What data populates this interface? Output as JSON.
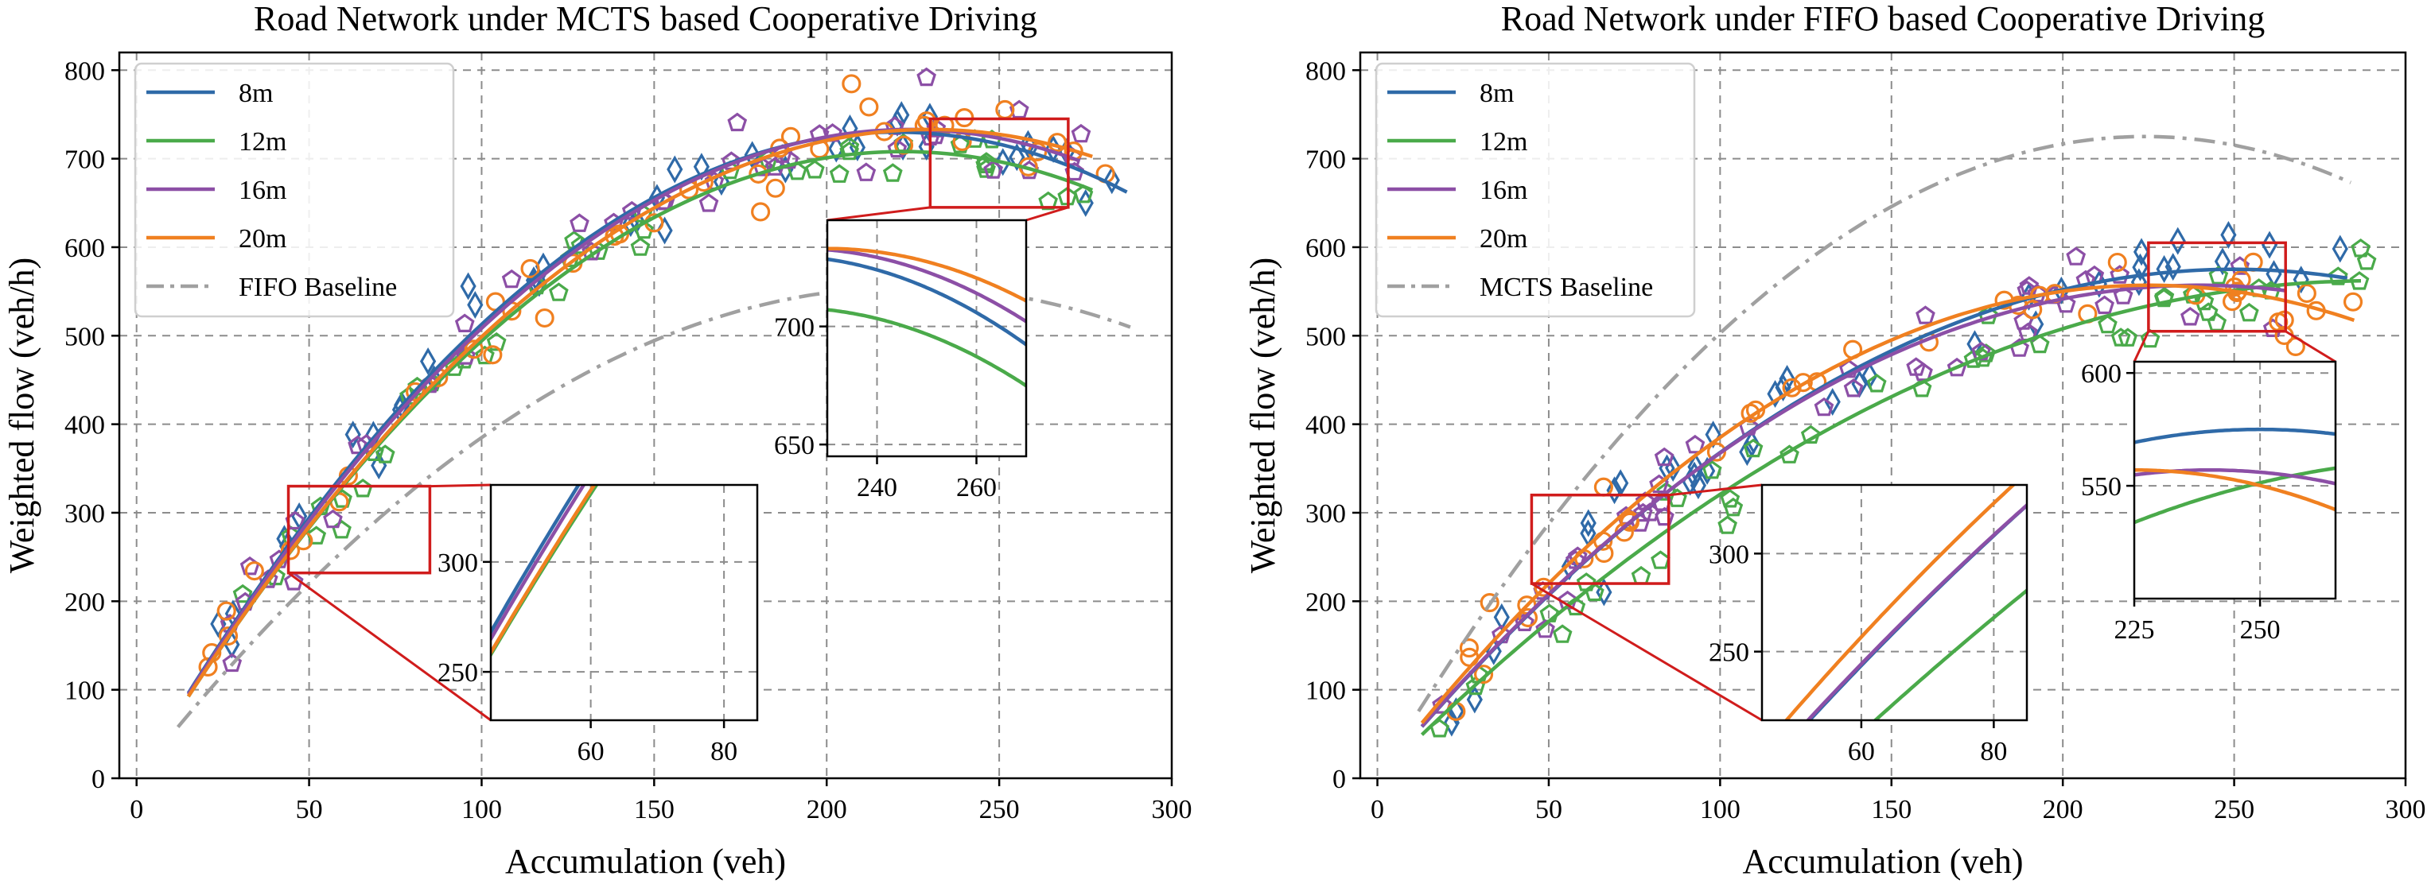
{
  "chart_data": [
    {
      "type": "scatter",
      "title": "Road Network under MCTS based Cooperative Driving",
      "xlabel": "Accumulation (veh)",
      "ylabel": "Weighted flow (veh/h)",
      "xlim": [
        -5,
        300
      ],
      "ylim": [
        0,
        820
      ],
      "xticks": [
        0,
        50,
        100,
        150,
        200,
        250,
        300
      ],
      "yticks": [
        0,
        100,
        200,
        300,
        400,
        500,
        600,
        700,
        800
      ],
      "grid": true,
      "legend_position": "top-left",
      "series": [
        {
          "name": "8m",
          "color": "#2f6aa8",
          "marker": "diamond",
          "fit": {
            "peak_x": 220,
            "peak_y": 730,
            "x_start": 15,
            "x_end": 287
          }
        },
        {
          "name": "12m",
          "color": "#4aaa4a",
          "marker": "pentagon",
          "fit": {
            "peak_x": 222,
            "peak_y": 708,
            "x_start": 15,
            "x_end": 278
          }
        },
        {
          "name": "16m",
          "color": "#8c4fa6",
          "marker": "pentagon",
          "fit": {
            "peak_x": 224,
            "peak_y": 733,
            "x_start": 15,
            "x_end": 273
          }
        },
        {
          "name": "20m",
          "color": "#f08020",
          "marker": "circle",
          "fit": {
            "peak_x": 230,
            "peak_y": 733,
            "x_start": 15,
            "x_end": 278
          }
        }
      ],
      "baseline": {
        "name": "FIFO Baseline",
        "color": "#a0a0a0",
        "peak_x": 224,
        "peak_y": 555,
        "x_start": 12,
        "x_end": 288
      },
      "insets": [
        {
          "box_xlim": [
            44,
            85
          ],
          "box_ylim": [
            232,
            330
          ],
          "xlim": [
            45,
            85
          ],
          "ylim": [
            228,
            335
          ],
          "xticks": [
            60,
            80
          ],
          "yticks": [
            250,
            300
          ]
        },
        {
          "box_xlim": [
            230,
            270
          ],
          "box_ylim": [
            645,
            745
          ],
          "xlim": [
            230,
            270
          ],
          "ylim": [
            645,
            745
          ],
          "xticks": [
            240,
            260
          ],
          "yticks": [
            650,
            700
          ]
        }
      ]
    },
    {
      "type": "scatter",
      "title": "Road Network under FIFO based Cooperative Driving",
      "xlabel": "Accumulation (veh)",
      "ylabel": "Weighted flow (veh/h)",
      "xlim": [
        -5,
        300
      ],
      "ylim": [
        0,
        820
      ],
      "xticks": [
        0,
        50,
        100,
        150,
        200,
        250,
        300
      ],
      "yticks": [
        0,
        100,
        200,
        300,
        400,
        500,
        600,
        700,
        800
      ],
      "grid": true,
      "legend_position": "top-left",
      "series": [
        {
          "name": "8m",
          "color": "#2f6aa8",
          "marker": "diamond",
          "fit": {
            "peak_x": 250,
            "peak_y": 575,
            "x_start": 13,
            "x_end": 283
          }
        },
        {
          "name": "12m",
          "color": "#4aaa4a",
          "marker": "pentagon",
          "fit": {
            "peak_x": 290,
            "peak_y": 562,
            "x_start": 13,
            "x_end": 288
          }
        },
        {
          "name": "16m",
          "color": "#8c4fa6",
          "marker": "pentagon",
          "fit": {
            "peak_x": 240,
            "peak_y": 557,
            "x_start": 13,
            "x_end": 265
          }
        },
        {
          "name": "20m",
          "color": "#f08020",
          "marker": "circle",
          "fit": {
            "peak_x": 225,
            "peak_y": 557,
            "x_start": 13,
            "x_end": 285
          }
        }
      ],
      "baseline": {
        "name": "MCTS Baseline",
        "color": "#a0a0a0",
        "peak_x": 224,
        "peak_y": 725,
        "x_start": 12,
        "x_end": 285
      },
      "insets": [
        {
          "box_xlim": [
            45,
            85
          ],
          "box_ylim": [
            220,
            320
          ],
          "xlim": [
            45,
            85
          ],
          "ylim": [
            215,
            335
          ],
          "xticks": [
            60,
            80
          ],
          "yticks": [
            250,
            300
          ]
        },
        {
          "box_xlim": [
            225,
            265
          ],
          "box_ylim": [
            505,
            605
          ],
          "xlim": [
            225,
            265
          ],
          "ylim": [
            500,
            605
          ],
          "xticks": [
            225,
            250
          ],
          "yticks": [
            550,
            600
          ]
        }
      ]
    }
  ]
}
